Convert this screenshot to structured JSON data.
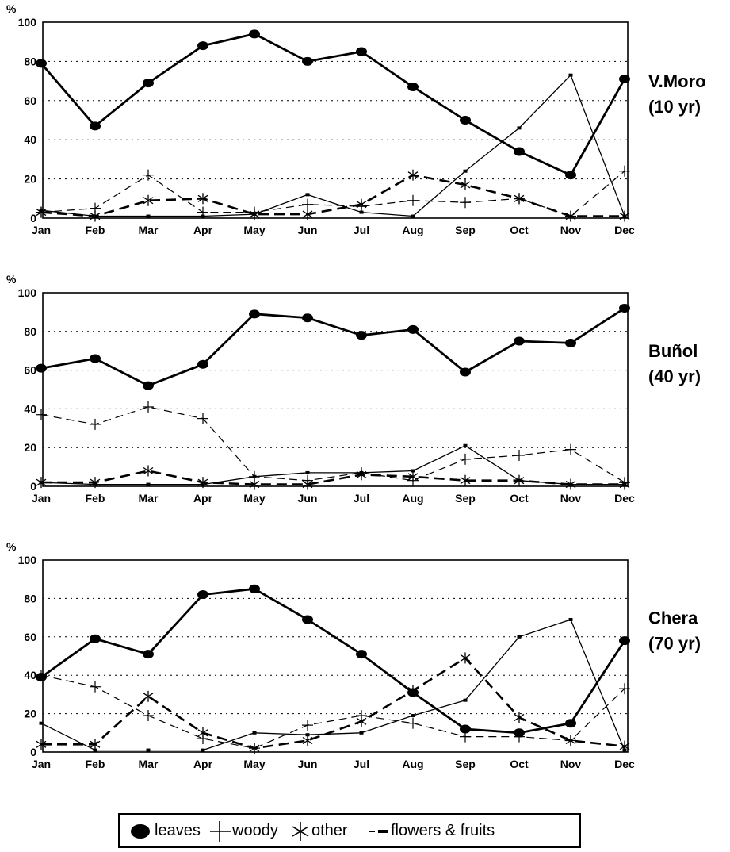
{
  "chart_data": [
    {
      "type": "line",
      "site": "V.Moro",
      "age": "(10 yr)",
      "ylabel": "%",
      "ylim": [
        0,
        100
      ],
      "yticks": [
        0,
        20,
        40,
        60,
        80,
        100
      ],
      "categories": [
        "Jan",
        "Feb",
        "Mar",
        "Apr",
        "May",
        "Jun",
        "Jul",
        "Aug",
        "Sep",
        "Oct",
        "Nov",
        "Dec"
      ],
      "grid": true,
      "series": [
        {
          "key": "leaves",
          "values": [
            79,
            47,
            69,
            88,
            94,
            80,
            85,
            67,
            50,
            34,
            22,
            71
          ]
        },
        {
          "key": "woody",
          "values": [
            3,
            5,
            22,
            3,
            3,
            7,
            6,
            9,
            8,
            10,
            1,
            24
          ]
        },
        {
          "key": "other",
          "values": [
            3,
            1,
            9,
            10,
            2,
            2,
            7,
            22,
            17,
            10,
            1,
            1
          ]
        },
        {
          "key": "flowers & fruits",
          "values": [
            4,
            1,
            1,
            1,
            2,
            12,
            3,
            1,
            24,
            46,
            73,
            1
          ]
        }
      ]
    },
    {
      "type": "line",
      "site": "Buñol",
      "age": "(40 yr)",
      "ylabel": "%",
      "ylim": [
        0,
        100
      ],
      "yticks": [
        0,
        20,
        40,
        60,
        80,
        100
      ],
      "categories": [
        "Jan",
        "Feb",
        "Mar",
        "Apr",
        "May",
        "Jun",
        "Jul",
        "Aug",
        "Sep",
        "Oct",
        "Nov",
        "Dec"
      ],
      "grid": true,
      "series": [
        {
          "key": "leaves",
          "values": [
            61,
            66,
            52,
            63,
            89,
            87,
            78,
            81,
            59,
            75,
            74,
            92
          ]
        },
        {
          "key": "woody",
          "values": [
            37,
            32,
            41,
            35,
            5,
            3,
            7,
            3,
            14,
            16,
            19,
            2
          ]
        },
        {
          "key": "other",
          "values": [
            2,
            2,
            8,
            2,
            1,
            1,
            6,
            5,
            3,
            3,
            1,
            1
          ]
        },
        {
          "key": "flowers & fruits",
          "values": [
            2,
            1,
            1,
            1,
            5,
            7,
            7,
            8,
            21,
            3,
            1,
            1
          ]
        }
      ]
    },
    {
      "type": "line",
      "site": "Chera",
      "age": "(70 yr)",
      "ylabel": "%",
      "ylim": [
        0,
        100
      ],
      "yticks": [
        0,
        20,
        40,
        60,
        80,
        100
      ],
      "categories": [
        "Jan",
        "Feb",
        "Mar",
        "Apr",
        "May",
        "Jun",
        "Jul",
        "Aug",
        "Sep",
        "Oct",
        "Nov",
        "Dec"
      ],
      "grid": true,
      "series": [
        {
          "key": "leaves",
          "values": [
            39,
            59,
            51,
            82,
            85,
            69,
            51,
            31,
            12,
            10,
            15,
            58
          ]
        },
        {
          "key": "woody",
          "values": [
            40,
            34,
            19,
            7,
            2,
            14,
            19,
            15,
            8,
            8,
            6,
            33
          ]
        },
        {
          "key": "other",
          "values": [
            4,
            4,
            29,
            10,
            2,
            6,
            16,
            32,
            49,
            18,
            6,
            3
          ]
        },
        {
          "key": "flowers & fruits",
          "values": [
            15,
            1,
            1,
            1,
            10,
            9,
            10,
            19,
            27,
            60,
            69,
            1
          ]
        }
      ]
    }
  ],
  "legend": {
    "leaves": "leaves",
    "woody": "woody",
    "other": "other",
    "flowers": "flowers & fruits"
  }
}
